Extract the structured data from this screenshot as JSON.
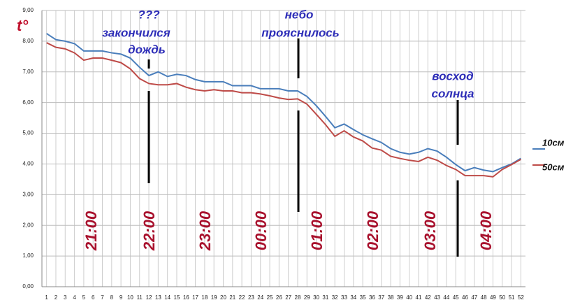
{
  "chart_data": {
    "type": "line",
    "title": "t°",
    "categories": [
      1,
      2,
      3,
      4,
      5,
      6,
      7,
      8,
      9,
      10,
      11,
      12,
      13,
      14,
      15,
      16,
      17,
      18,
      19,
      20,
      21,
      22,
      23,
      24,
      25,
      26,
      27,
      28,
      29,
      30,
      31,
      32,
      33,
      34,
      35,
      36,
      37,
      38,
      39,
      40,
      41,
      42,
      43,
      44,
      45,
      46,
      47,
      48,
      49,
      50,
      51,
      52
    ],
    "series": [
      {
        "name": "10см",
        "color": "#4a7ebb",
        "values": [
          8.25,
          8.05,
          8.0,
          7.92,
          7.68,
          7.68,
          7.68,
          7.62,
          7.58,
          7.45,
          7.15,
          6.88,
          7.0,
          6.85,
          6.92,
          6.88,
          6.75,
          6.68,
          6.68,
          6.68,
          6.55,
          6.55,
          6.55,
          6.45,
          6.45,
          6.45,
          6.38,
          6.38,
          6.2,
          5.9,
          5.55,
          5.18,
          5.3,
          5.12,
          4.95,
          4.82,
          4.7,
          4.5,
          4.38,
          4.32,
          4.38,
          4.5,
          4.42,
          4.22,
          3.98,
          3.78,
          3.88,
          3.8,
          3.75,
          3.88,
          4.0,
          4.18
        ]
      },
      {
        "name": "50см",
        "color": "#be4b48",
        "values": [
          7.95,
          7.8,
          7.75,
          7.62,
          7.38,
          7.45,
          7.45,
          7.38,
          7.3,
          7.1,
          6.78,
          6.62,
          6.58,
          6.58,
          6.62,
          6.5,
          6.42,
          6.38,
          6.42,
          6.38,
          6.38,
          6.32,
          6.32,
          6.28,
          6.22,
          6.15,
          6.1,
          6.12,
          5.95,
          5.62,
          5.28,
          4.9,
          5.08,
          4.88,
          4.75,
          4.52,
          4.45,
          4.25,
          4.18,
          4.12,
          4.08,
          4.22,
          4.12,
          3.95,
          3.82,
          3.62,
          3.62,
          3.62,
          3.58,
          3.82,
          3.98,
          4.15
        ]
      }
    ],
    "ylim": [
      0,
      9
    ],
    "yticks": [
      {
        "value": 0,
        "label": "0,00"
      },
      {
        "value": 1,
        "label": "1,00"
      },
      {
        "value": 2,
        "label": "2,00"
      },
      {
        "value": 3,
        "label": "3,00"
      },
      {
        "value": 4,
        "label": "4,00"
      },
      {
        "value": 5,
        "label": "5,00"
      },
      {
        "value": 6,
        "label": "6,00"
      },
      {
        "value": 7,
        "label": "7,00"
      },
      {
        "value": 8,
        "label": "8,00"
      },
      {
        "value": 9,
        "label": "9,00"
      }
    ],
    "grid": true,
    "annotations": [
      "???",
      "закончился",
      "дождь",
      "небо",
      "прояснилось",
      "восход",
      "солнца"
    ],
    "time_labels": [
      "21:00",
      "22:00",
      "23:00",
      "00:00",
      "01:00",
      "02:00",
      "03:00",
      "04:00"
    ]
  }
}
